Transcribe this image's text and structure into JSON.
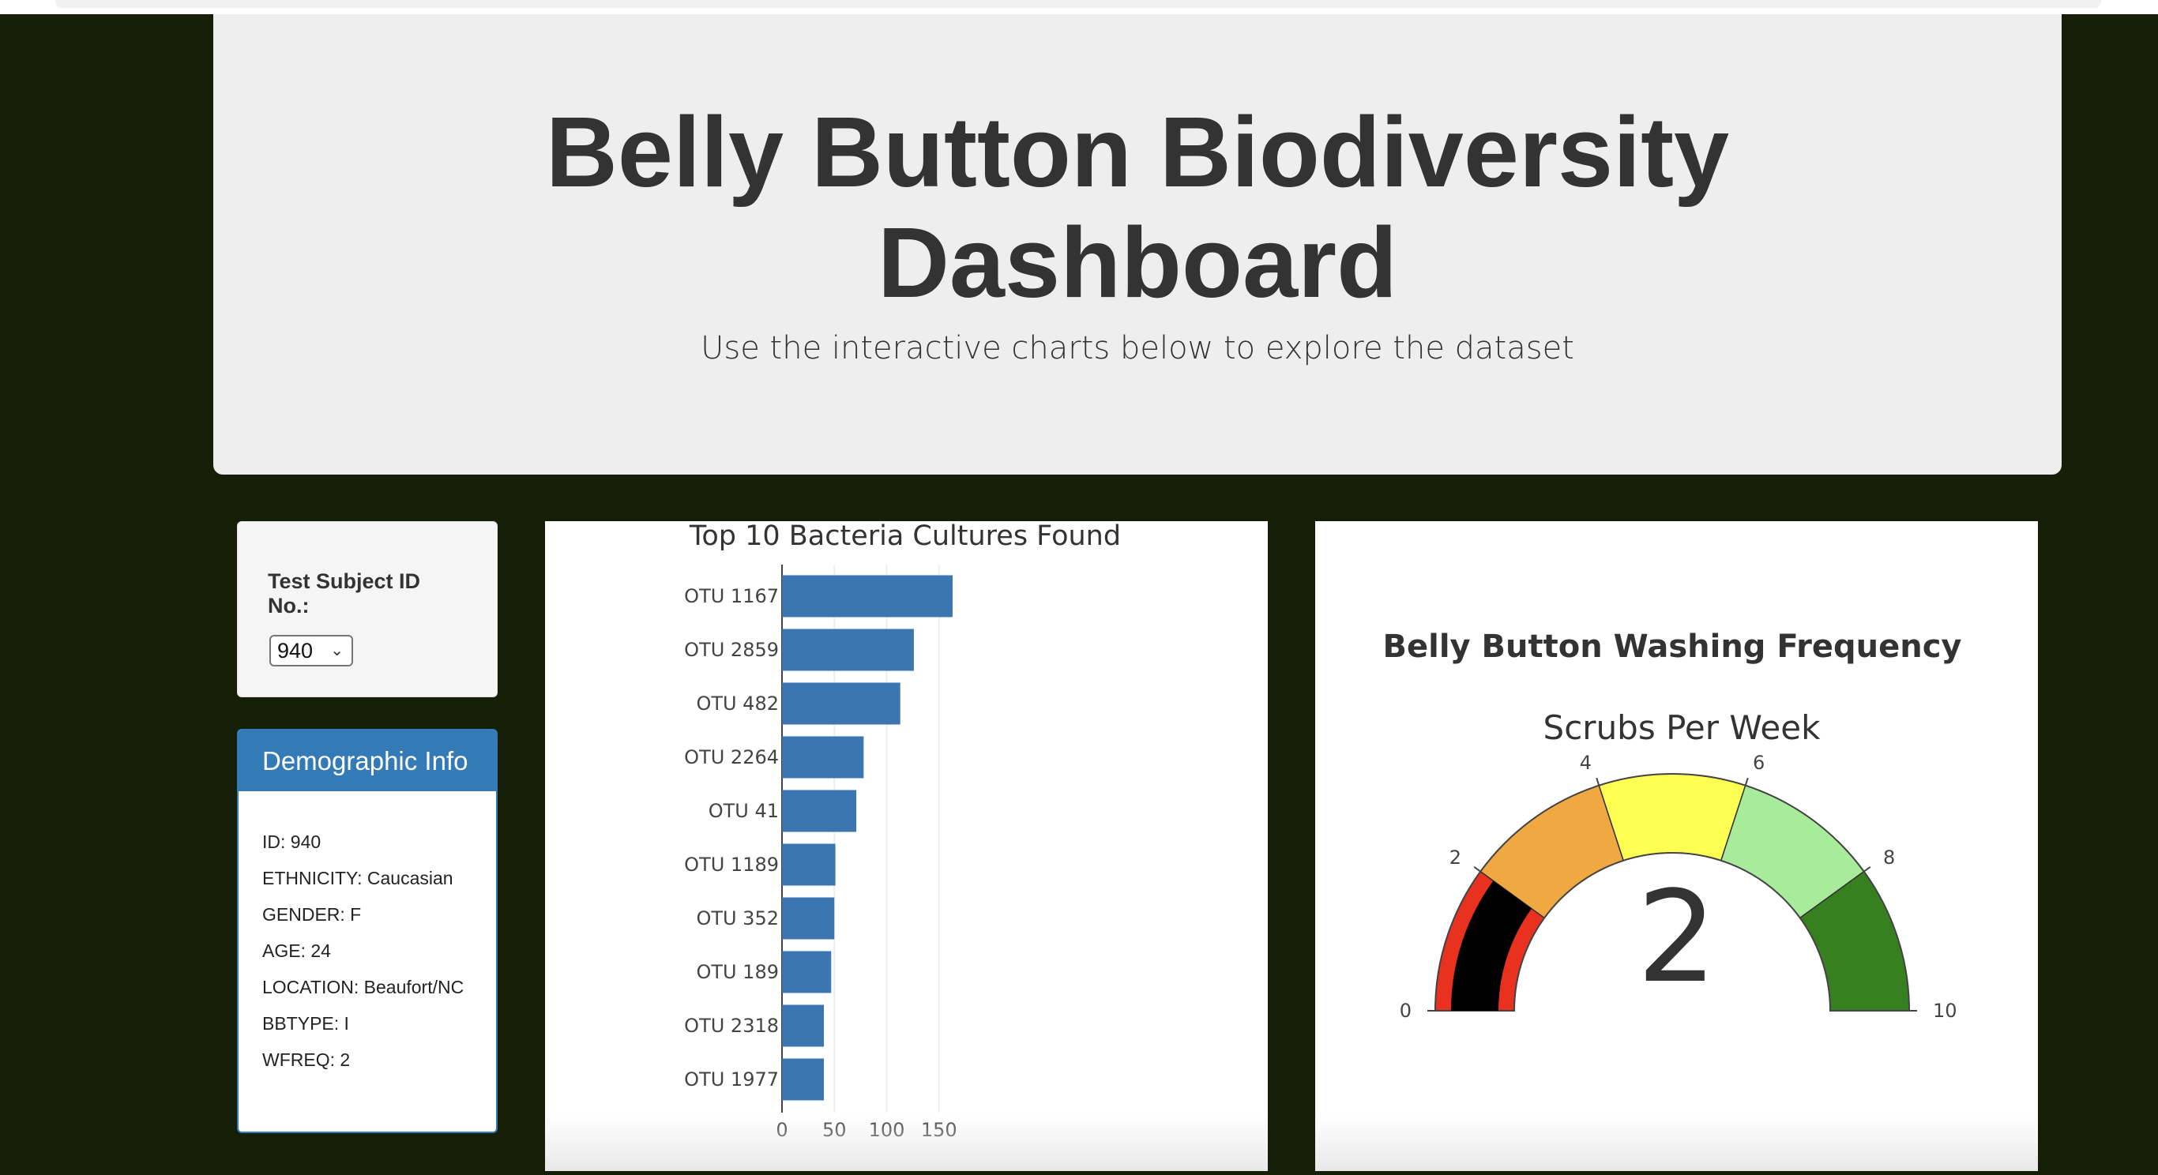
{
  "header": {
    "title": "Belly Button Biodiversity Dashboard",
    "subtitle": "Use the interactive charts below to explore the dataset"
  },
  "selector": {
    "label": "Test Subject ID No.:",
    "selected": "940"
  },
  "demographics": {
    "heading": "Demographic Info",
    "rows": [
      "ID: 940",
      "ETHNICITY: Caucasian",
      "GENDER: F",
      "AGE: 24",
      "LOCATION: Beaufort/NC",
      "BBTYPE: I",
      "WFREQ: 2"
    ]
  },
  "colors": {
    "bar": "#3c76b1",
    "panel": "#337ab7",
    "gauge_bands": [
      "#e8321f",
      "#f0a840",
      "#fdff52",
      "#a8eb9a",
      "#37801f"
    ],
    "needle": "#000000"
  },
  "chart_data": [
    {
      "type": "bar",
      "orientation": "horizontal",
      "title": "Top 10 Bacteria Cultures Found",
      "categories": [
        "OTU 1167",
        "OTU 2859",
        "OTU 482",
        "OTU 2264",
        "OTU 41",
        "OTU 1189",
        "OTU 352",
        "OTU 189",
        "OTU 2318",
        "OTU 1977"
      ],
      "values": [
        163,
        126,
        113,
        78,
        71,
        51,
        50,
        47,
        40,
        40
      ],
      "xlim": [
        0,
        160
      ],
      "xticks": [
        "0",
        "50",
        "100",
        "150"
      ],
      "grid": true
    },
    {
      "type": "gauge",
      "title": "Belly Button Washing Frequency",
      "subtitle": "Scrubs Per Week",
      "value": 2,
      "value_label": "2",
      "range": [
        0,
        10
      ],
      "steps": [
        [
          0,
          2
        ],
        [
          2,
          4
        ],
        [
          4,
          6
        ],
        [
          6,
          8
        ],
        [
          8,
          10
        ]
      ],
      "ticks": [
        "0",
        "2",
        "4",
        "6",
        "8",
        "10"
      ]
    }
  ]
}
